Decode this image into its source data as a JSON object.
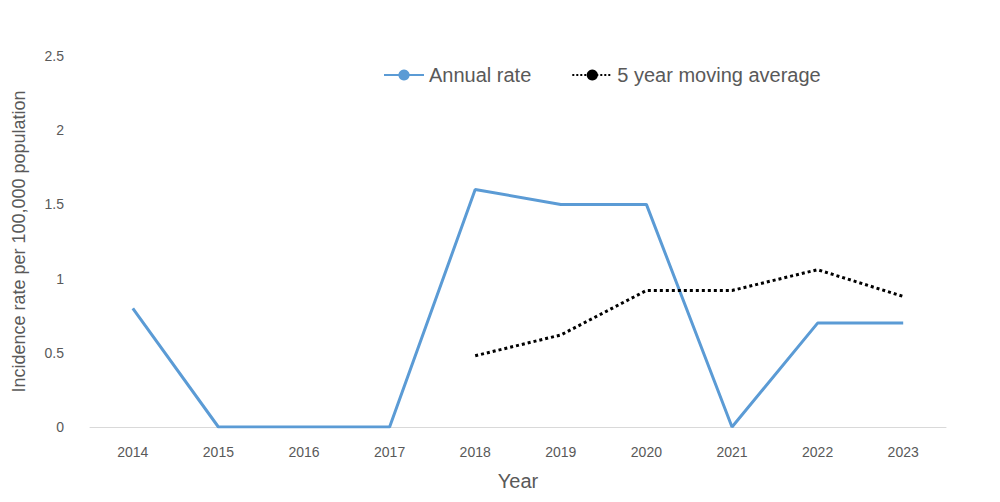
{
  "chart_data": {
    "type": "line",
    "x_label": "Year",
    "y_label": "Incidence rate per 100,000 population",
    "categories": [
      "2014",
      "2015",
      "2016",
      "2017",
      "2018",
      "2019",
      "2020",
      "2021",
      "2022",
      "2023"
    ],
    "series": [
      {
        "name": "Annual rate",
        "color": "#5b9bd5",
        "line_style": "solid",
        "marker": "none",
        "values": [
          0.8,
          0,
          0,
          0,
          1.6,
          1.5,
          1.5,
          0,
          0.7,
          0.7
        ]
      },
      {
        "name": "5 year moving average",
        "color": "#000000",
        "line_style": "dotted",
        "marker": "none",
        "values": [
          null,
          null,
          null,
          null,
          0.48,
          0.62,
          0.92,
          0.92,
          1.06,
          0.88
        ]
      }
    ],
    "ylim": [
      0,
      2.5
    ],
    "yticks": [
      0,
      0.5,
      1,
      1.5,
      2,
      2.5
    ],
    "grid": false,
    "legend": "top"
  }
}
